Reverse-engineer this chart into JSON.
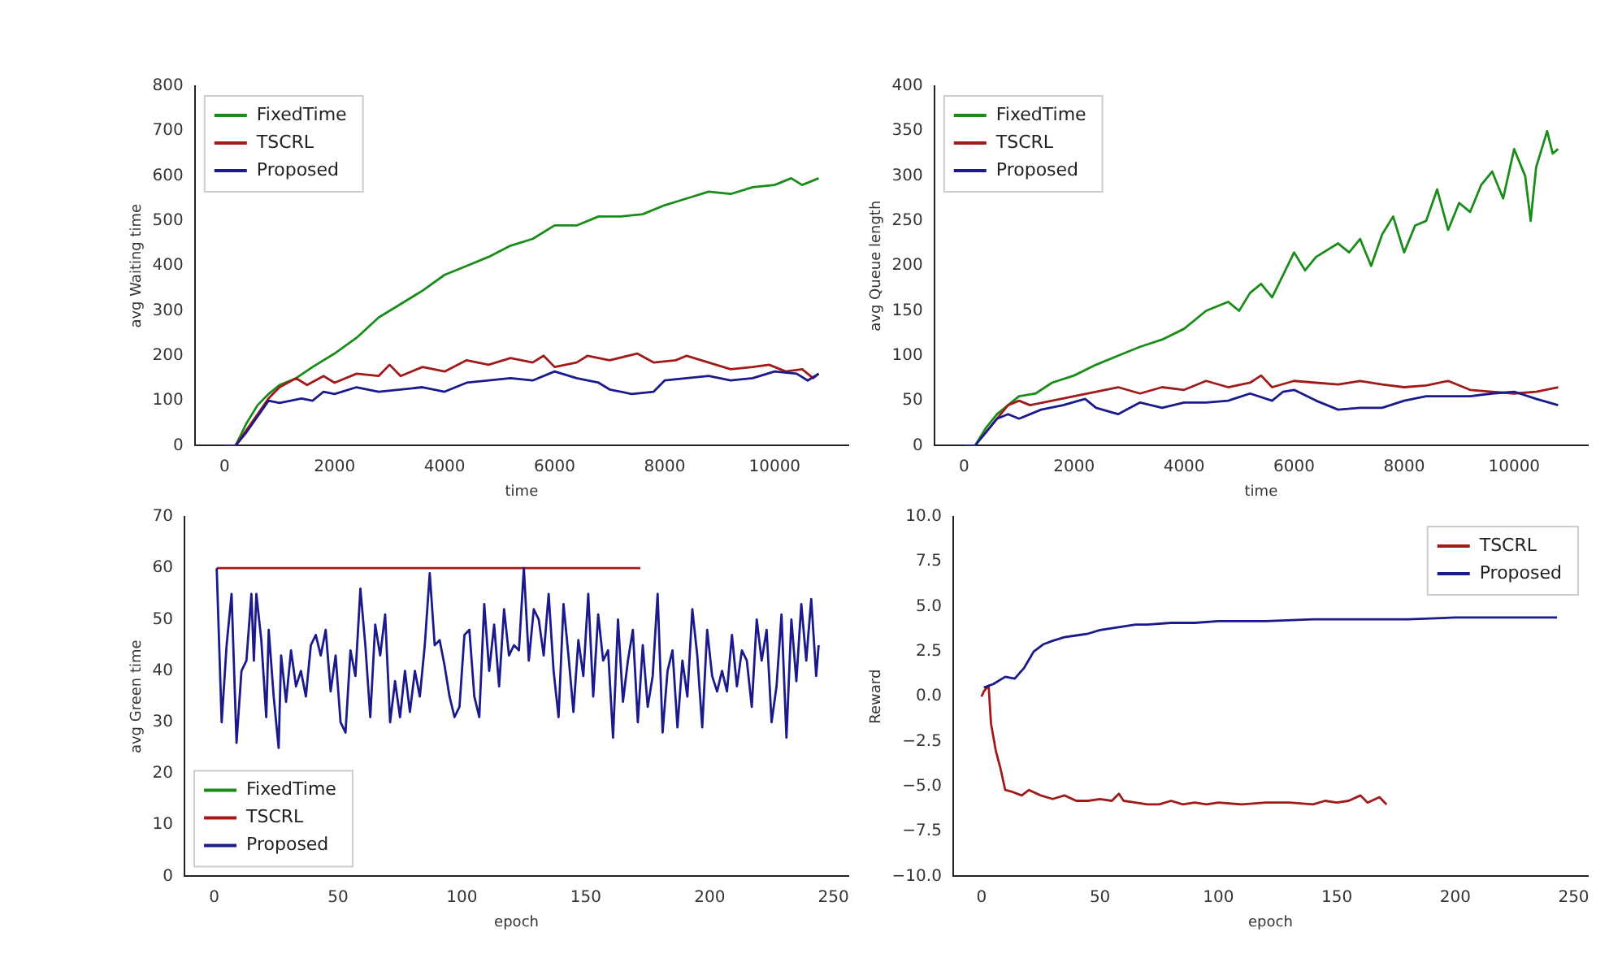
{
  "chart_data": [
    {
      "type": "line",
      "xlabel": "time",
      "ylabel": "avg Waiting time",
      "xlim": [
        -540,
        11340
      ],
      "xticks": [
        0,
        2000,
        4000,
        6000,
        8000,
        10000
      ],
      "ylim": [
        0,
        800
      ],
      "yticks": [
        0,
        100,
        200,
        300,
        400,
        500,
        600,
        700,
        800
      ],
      "legend": "top left",
      "marker": "none",
      "line_style": "solid",
      "grid": false,
      "series": [
        {
          "name": "FixedTime",
          "color": "#1a8c1a",
          "x": [
            0,
            200,
            400,
            600,
            800,
            1000,
            1300,
            1600,
            2000,
            2400,
            2800,
            3200,
            3600,
            4000,
            4400,
            4800,
            5200,
            5600,
            6000,
            6400,
            6800,
            7200,
            7600,
            8000,
            8400,
            8800,
            9200,
            9600,
            10000,
            10300,
            10500,
            10800
          ],
          "values": [
            0,
            0,
            50,
            90,
            115,
            135,
            150,
            175,
            205,
            240,
            285,
            315,
            345,
            380,
            400,
            420,
            445,
            460,
            490,
            490,
            510,
            510,
            515,
            535,
            550,
            565,
            560,
            575,
            580,
            595,
            580,
            595
          ]
        },
        {
          "name": "TSCRL",
          "color": "#a01a1a",
          "x": [
            0,
            200,
            400,
            600,
            800,
            1000,
            1300,
            1500,
            1800,
            2000,
            2400,
            2800,
            3000,
            3200,
            3600,
            4000,
            4400,
            4800,
            5200,
            5600,
            5800,
            6000,
            6400,
            6600,
            7000,
            7500,
            7800,
            8200,
            8400,
            8800,
            9200,
            9600,
            9900,
            10200,
            10500,
            10700,
            10800
          ],
          "values": [
            0,
            0,
            35,
            70,
            105,
            130,
            150,
            135,
            155,
            140,
            160,
            155,
            180,
            155,
            175,
            165,
            190,
            180,
            195,
            185,
            200,
            175,
            185,
            200,
            190,
            205,
            185,
            190,
            200,
            185,
            170,
            175,
            180,
            165,
            170,
            150,
            160
          ]
        },
        {
          "name": "Proposed",
          "color": "#1a1a8c",
          "x": [
            0,
            200,
            400,
            600,
            800,
            1000,
            1400,
            1600,
            1800,
            2000,
            2400,
            2800,
            3200,
            3600,
            4000,
            4400,
            4800,
            5200,
            5600,
            6000,
            6400,
            6800,
            7000,
            7400,
            7800,
            8000,
            8400,
            8800,
            9200,
            9600,
            10000,
            10400,
            10600,
            10800
          ],
          "values": [
            0,
            0,
            30,
            65,
            100,
            95,
            105,
            100,
            120,
            115,
            130,
            120,
            125,
            130,
            120,
            140,
            145,
            150,
            145,
            165,
            150,
            140,
            125,
            115,
            120,
            145,
            150,
            155,
            145,
            150,
            165,
            160,
            145,
            160
          ]
        }
      ]
    },
    {
      "type": "line",
      "xlabel": "time",
      "ylabel": "avg Queue length",
      "xlim": [
        -540,
        11340
      ],
      "xticks": [
        0,
        2000,
        4000,
        6000,
        8000,
        10000
      ],
      "ylim": [
        0,
        400
      ],
      "yticks": [
        0,
        50,
        100,
        150,
        200,
        250,
        300,
        350,
        400
      ],
      "legend": "top left",
      "marker": "none",
      "line_style": "solid",
      "grid": false,
      "series": [
        {
          "name": "FixedTime",
          "color": "#1a8c1a",
          "x": [
            0,
            200,
            400,
            600,
            800,
            1000,
            1300,
            1600,
            2000,
            2400,
            2800,
            3200,
            3600,
            4000,
            4400,
            4800,
            5000,
            5200,
            5400,
            5600,
            5800,
            6000,
            6200,
            6400,
            6800,
            7000,
            7200,
            7400,
            7600,
            7800,
            8000,
            8200,
            8400,
            8600,
            8800,
            9000,
            9200,
            9400,
            9600,
            9800,
            10000,
            10200,
            10300,
            10400,
            10600,
            10700,
            10800
          ],
          "values": [
            0,
            0,
            20,
            35,
            45,
            55,
            58,
            70,
            78,
            90,
            100,
            110,
            118,
            130,
            150,
            160,
            150,
            170,
            180,
            165,
            190,
            215,
            195,
            210,
            225,
            215,
            230,
            200,
            235,
            255,
            215,
            245,
            250,
            285,
            240,
            270,
            260,
            290,
            305,
            275,
            330,
            300,
            250,
            310,
            350,
            325,
            330
          ]
        },
        {
          "name": "TSCRL",
          "color": "#a01a1a",
          "x": [
            300,
            400,
            600,
            800,
            1000,
            1200,
            1600,
            2000,
            2400,
            2800,
            3200,
            3600,
            4000,
            4400,
            4800,
            5200,
            5400,
            5600,
            6000,
            6400,
            6800,
            7200,
            7600,
            8000,
            8400,
            8800,
            9200,
            9600,
            10000,
            10400,
            10800
          ],
          "values": [
            8,
            15,
            30,
            45,
            50,
            45,
            50,
            55,
            60,
            65,
            58,
            65,
            62,
            72,
            65,
            70,
            78,
            65,
            72,
            70,
            68,
            72,
            68,
            65,
            67,
            72,
            62,
            60,
            58,
            60,
            65
          ]
        },
        {
          "name": "Proposed",
          "color": "#1a1a8c",
          "x": [
            0,
            200,
            400,
            600,
            800,
            1000,
            1400,
            1800,
            2200,
            2400,
            2800,
            3200,
            3600,
            4000,
            4400,
            4800,
            5200,
            5600,
            5800,
            6000,
            6400,
            6800,
            7200,
            7600,
            8000,
            8400,
            8800,
            9200,
            9600,
            10000,
            10400,
            10800
          ],
          "values": [
            0,
            0,
            15,
            30,
            35,
            30,
            40,
            45,
            52,
            42,
            35,
            48,
            42,
            48,
            48,
            50,
            58,
            50,
            60,
            62,
            50,
            40,
            42,
            42,
            50,
            55,
            55,
            55,
            58,
            60,
            52,
            45
          ]
        }
      ]
    },
    {
      "type": "line",
      "xlabel": "epoch",
      "ylabel": "avg Green time",
      "xlim": [
        -12,
        256
      ],
      "xticks": [
        0,
        50,
        100,
        150,
        200,
        250
      ],
      "ylim": [
        0,
        70
      ],
      "yticks": [
        0,
        10,
        20,
        30,
        40,
        50,
        60,
        70
      ],
      "legend": "bottom left",
      "marker": "none",
      "line_style": "solid",
      "grid": false,
      "series": [
        {
          "name": "FixedTime",
          "color": "#1a8c1a"
        },
        {
          "name": "TSCRL",
          "color": "#a01a1a",
          "x": [
            1,
            172
          ],
          "values": [
            60,
            60
          ]
        },
        {
          "name": "Proposed",
          "color": "#1a1a8c",
          "x": [
            1,
            3,
            5,
            7,
            9,
            11,
            13,
            15,
            16,
            17,
            19,
            21,
            22,
            24,
            26,
            27,
            29,
            31,
            33,
            35,
            37,
            39,
            41,
            43,
            45,
            47,
            49,
            51,
            53,
            55,
            57,
            59,
            61,
            63,
            65,
            67,
            69,
            71,
            73,
            75,
            77,
            79,
            81,
            83,
            85,
            87,
            89,
            91,
            93,
            95,
            97,
            99,
            101,
            103,
            105,
            107,
            109,
            111,
            113,
            115,
            117,
            119,
            121,
            123,
            125,
            127,
            129,
            131,
            133,
            135,
            137,
            139,
            141,
            143,
            145,
            147,
            149,
            151,
            153,
            155,
            157,
            159,
            161,
            163,
            165,
            167,
            169,
            171,
            173,
            175,
            177,
            179,
            181,
            183,
            185,
            187,
            189,
            191,
            193,
            195,
            197,
            199,
            201,
            203,
            205,
            207,
            209,
            211,
            213,
            215,
            217,
            219,
            221,
            223,
            225,
            227,
            229,
            231,
            233,
            235,
            237,
            239,
            241,
            243,
            244
          ],
          "values": [
            60,
            30,
            45,
            55,
            26,
            40,
            42,
            55,
            42,
            55,
            46,
            31,
            48,
            35,
            25,
            43,
            34,
            44,
            37,
            40,
            35,
            45,
            47,
            43,
            48,
            36,
            43,
            30,
            28,
            44,
            39,
            56,
            45,
            31,
            49,
            43,
            51,
            30,
            38,
            31,
            40,
            32,
            40,
            35,
            45,
            59,
            45,
            46,
            41,
            35,
            31,
            33,
            47,
            48,
            35,
            31,
            53,
            40,
            49,
            37,
            52,
            43,
            45,
            44,
            60,
            42,
            52,
            50,
            43,
            55,
            40,
            31,
            53,
            43,
            32,
            46,
            39,
            55,
            35,
            51,
            42,
            44,
            27,
            50,
            34,
            42,
            48,
            30,
            45,
            33,
            39,
            55,
            28,
            40,
            44,
            29,
            42,
            35,
            52,
            43,
            29,
            48,
            39,
            36,
            40,
            36,
            47,
            37,
            44,
            42,
            33,
            50,
            42,
            48,
            30,
            37,
            51,
            27,
            50,
            38,
            53,
            42,
            54,
            39,
            45
          ]
        }
      ]
    },
    {
      "type": "line",
      "xlabel": "epoch",
      "ylabel": "Reward",
      "xlim": [
        -12,
        256
      ],
      "xticks": [
        0,
        50,
        100,
        150,
        200,
        250
      ],
      "ylim": [
        -10,
        10
      ],
      "yticks": [
        {
          "value": -10,
          "label": "−10.0"
        },
        {
          "value": -7.5,
          "label": "−7.5"
        },
        {
          "value": -5,
          "label": "−5.0"
        },
        {
          "value": -2.5,
          "label": "−2.5"
        },
        {
          "value": 0,
          "label": "0.0"
        },
        {
          "value": 2.5,
          "label": "2.5"
        },
        {
          "value": 5,
          "label": "5.0"
        },
        {
          "value": 7.5,
          "label": "7.5"
        },
        {
          "value": 10,
          "label": "10.0"
        }
      ],
      "legend": "top right",
      "marker": "none",
      "line_style": "solid",
      "grid": false,
      "series": [
        {
          "name": "TSCRL",
          "color": "#a01a1a",
          "x": [
            0,
            1,
            3,
            4,
            6,
            8,
            10,
            13,
            17,
            20,
            25,
            30,
            35,
            40,
            45,
            50,
            55,
            58,
            60,
            65,
            70,
            75,
            80,
            85,
            90,
            95,
            100,
            110,
            120,
            130,
            140,
            145,
            150,
            155,
            160,
            163,
            168,
            171
          ],
          "values": [
            0,
            0.3,
            0.6,
            -1.5,
            -3,
            -4,
            -5.2,
            -5.3,
            -5.5,
            -5.2,
            -5.5,
            -5.7,
            -5.5,
            -5.8,
            -5.8,
            -5.7,
            -5.8,
            -5.4,
            -5.8,
            -5.9,
            -6,
            -6,
            -5.8,
            -6,
            -5.9,
            -6,
            -5.9,
            -6,
            -5.9,
            -5.9,
            -6,
            -5.8,
            -5.9,
            -5.8,
            -5.5,
            -5.9,
            -5.6,
            -6
          ]
        },
        {
          "name": "Proposed",
          "color": "#1a1a8c",
          "x": [
            1,
            5,
            10,
            14,
            18,
            22,
            26,
            30,
            35,
            40,
            45,
            50,
            55,
            60,
            65,
            70,
            80,
            90,
            100,
            120,
            140,
            160,
            180,
            200,
            220,
            243
          ],
          "values": [
            0.5,
            0.7,
            1.1,
            1,
            1.6,
            2.5,
            2.9,
            3.1,
            3.3,
            3.4,
            3.5,
            3.7,
            3.8,
            3.9,
            4,
            4,
            4.1,
            4.1,
            4.2,
            4.2,
            4.3,
            4.3,
            4.3,
            4.4,
            4.4,
            4.4
          ]
        }
      ]
    }
  ]
}
